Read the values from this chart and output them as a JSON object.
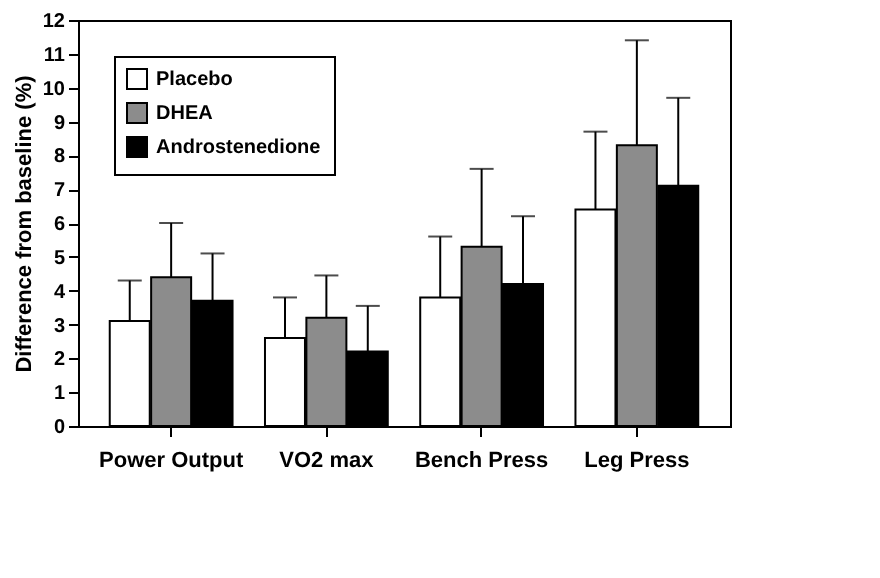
{
  "chart_data": {
    "type": "bar",
    "ylabel": "Difference from baseline (%)",
    "categories": [
      "Power Output",
      "VO2 max",
      "Bench Press",
      "Leg Press"
    ],
    "series": [
      {
        "name": "Placebo",
        "color": "#ffffff",
        "values": [
          3.1,
          2.6,
          3.8,
          6.4
        ],
        "errors": [
          [
            3.1,
            4.3
          ],
          [
            2.6,
            3.8
          ],
          [
            3.8,
            5.6
          ],
          [
            6.4,
            8.7
          ]
        ]
      },
      {
        "name": "DHEA",
        "color": "#8c8c8c",
        "values": [
          4.4,
          3.2,
          5.3,
          8.3
        ],
        "errors": [
          [
            4.4,
            6.0
          ],
          [
            3.2,
            4.45
          ],
          [
            5.3,
            7.6
          ],
          [
            8.3,
            11.4
          ]
        ]
      },
      {
        "name": "Androstenedione",
        "color": "#000000",
        "values": [
          3.7,
          2.2,
          4.2,
          7.1
        ],
        "errors": [
          [
            3.7,
            5.1
          ],
          [
            2.2,
            3.55
          ],
          [
            4.2,
            6.2
          ],
          [
            7.1,
            9.7
          ]
        ]
      }
    ],
    "ylim": [
      0,
      12
    ],
    "yticks": [
      0,
      1,
      2,
      3,
      4,
      5,
      6,
      7,
      8,
      9,
      10,
      11,
      12
    ],
    "grid": false,
    "legend": "top left"
  }
}
